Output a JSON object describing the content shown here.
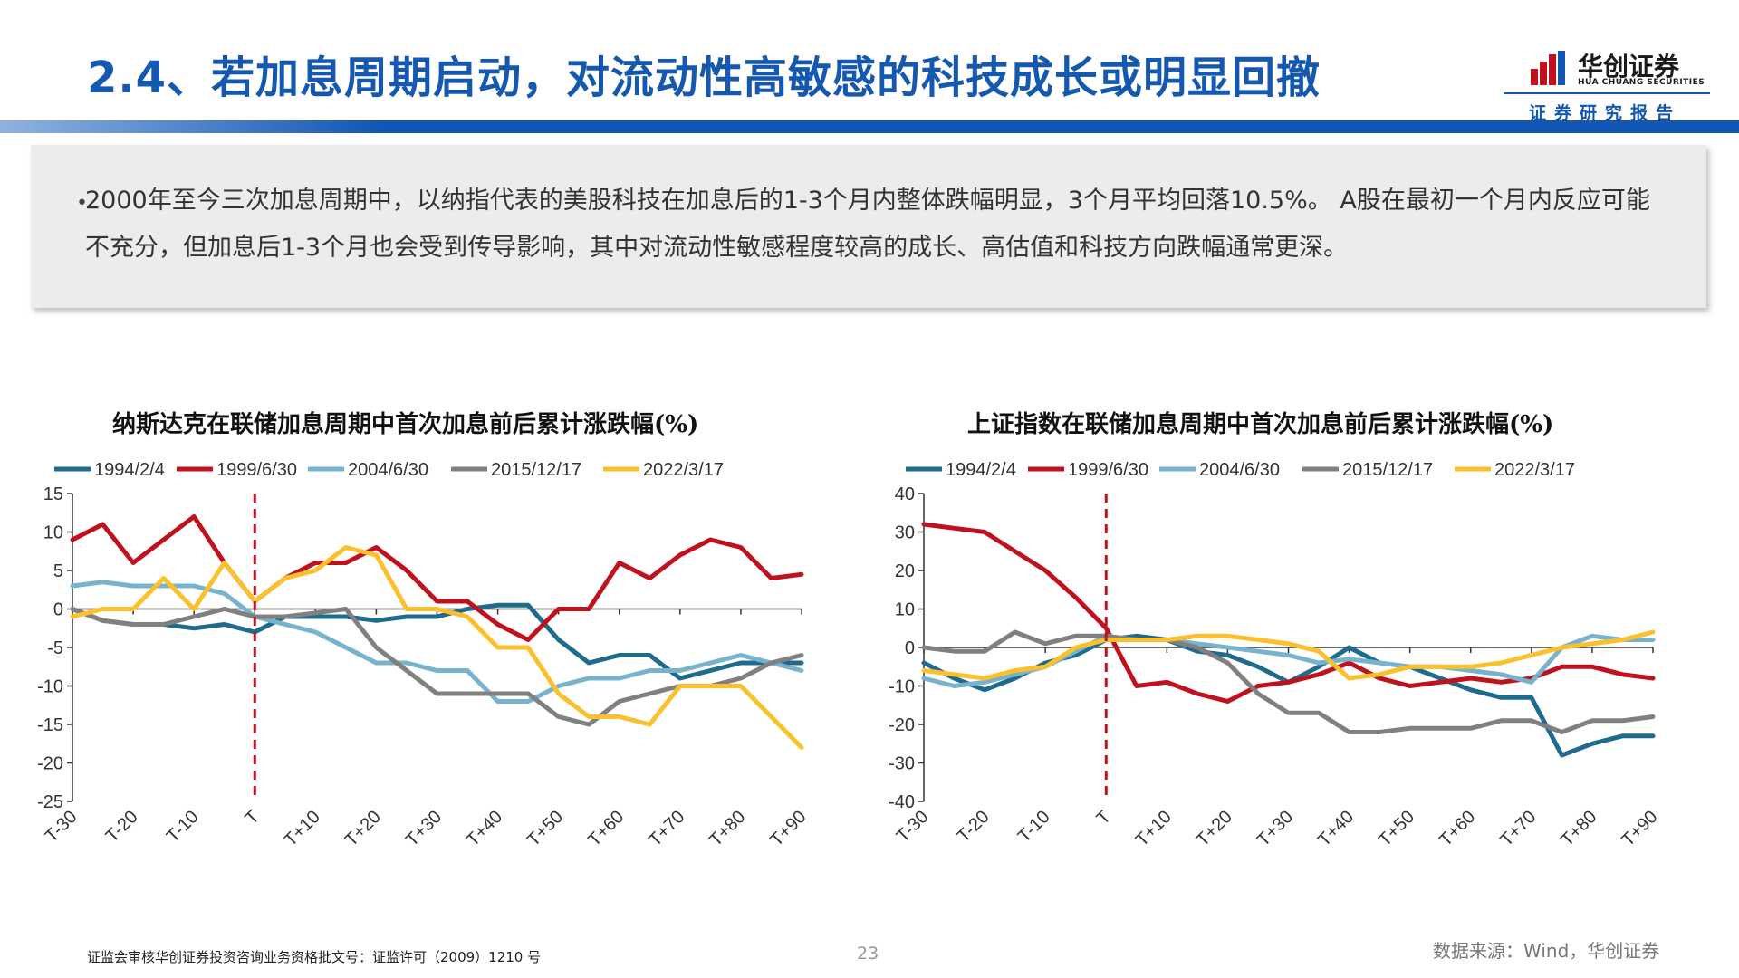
{
  "header": {
    "title": "2.4、若加息周期启动，对流动性高敏感的科技成长或明显回撤",
    "logo_cn": "华创证券",
    "logo_en": "HUA CHUANG SECURITIES",
    "report_tag": "证券研究报告"
  },
  "summary": {
    "bullet": "•",
    "text": "2000年至今三次加息周期中，以纳指代表的美股科技在加息后的1-3个月内整体跌幅明显，3个月平均回落10.5%。 A股在最初一个月内反应可能不充分，但加息后1-3个月也会受到传导影响，其中对流动性敏感程度较高的成长、高估值和科技方向跌幅通常更深。"
  },
  "colors": {
    "s1994": "#1f6b8e",
    "s1999": "#c0121e",
    "s2004": "#77b3cc",
    "s2015": "#808080",
    "s2022": "#fbc12d",
    "accent": "#1257b3"
  },
  "chart_data": [
    {
      "type": "line",
      "title": "纳斯达克在联储加息周期中首次加息前后累计涨跌幅(%)",
      "x_ticks": [
        "T-30",
        "T-20",
        "T-10",
        "T",
        "T+10",
        "T+20",
        "T+30",
        "T+40",
        "T+50",
        "T+60",
        "T+70",
        "T+80",
        "T+90"
      ],
      "ylim": [
        -25,
        15
      ],
      "y_ticks": [
        15,
        10,
        5,
        0,
        -5,
        -10,
        -15,
        -20,
        -25
      ],
      "vline_at": 0,
      "legend_position": "top",
      "series": [
        {
          "name": "1994/2/4",
          "color_key": "s1994",
          "x": [
            -30,
            -25,
            -20,
            -15,
            -10,
            -5,
            0,
            5,
            10,
            15,
            20,
            25,
            30,
            35,
            40,
            45,
            50,
            55,
            60,
            65,
            70,
            75,
            80,
            85,
            90
          ],
          "y": [
            0,
            -1.5,
            -2,
            -2,
            -2.5,
            -2,
            -3,
            -1,
            -1,
            -1,
            -1.5,
            -1,
            -1,
            0,
            0.5,
            0.5,
            -4,
            -7,
            -6,
            -6,
            -9,
            -8,
            -7,
            -7,
            -7
          ]
        },
        {
          "name": "1999/6/30",
          "color_key": "s1999",
          "x": [
            -30,
            -25,
            -20,
            -15,
            -10,
            -5,
            0,
            5,
            10,
            15,
            20,
            25,
            30,
            35,
            40,
            45,
            50,
            55,
            60,
            65,
            70,
            75,
            80,
            85,
            90
          ],
          "y": [
            9,
            11,
            6,
            9,
            12,
            6,
            1,
            4,
            6,
            6,
            8,
            5,
            1,
            1,
            -2,
            -4,
            0,
            0,
            6,
            4,
            7,
            9,
            8,
            4,
            4.5
          ]
        },
        {
          "name": "2004/6/30",
          "color_key": "s2004",
          "x": [
            -30,
            -25,
            -20,
            -15,
            -10,
            -5,
            0,
            5,
            10,
            15,
            20,
            25,
            30,
            35,
            40,
            45,
            50,
            55,
            60,
            65,
            70,
            75,
            80,
            85,
            90
          ],
          "y": [
            3,
            3.5,
            3,
            3,
            3,
            2,
            -1,
            -2,
            -3,
            -5,
            -7,
            -7,
            -8,
            -8,
            -12,
            -12,
            -10,
            -9,
            -9,
            -8,
            -8,
            -7,
            -6,
            -7,
            -8
          ]
        },
        {
          "name": "2015/12/17",
          "color_key": "s2015",
          "x": [
            -30,
            -25,
            -20,
            -15,
            -10,
            -5,
            0,
            5,
            10,
            15,
            20,
            25,
            30,
            35,
            40,
            45,
            50,
            55,
            60,
            65,
            70,
            75,
            80,
            85,
            90
          ],
          "y": [
            0,
            -1.5,
            -2,
            -2,
            -1,
            0,
            -1,
            -1,
            -0.5,
            0,
            -5,
            -8,
            -11,
            -11,
            -11,
            -11,
            -14,
            -15,
            -12,
            -11,
            -10,
            -10,
            -9,
            -7,
            -6
          ]
        },
        {
          "name": "2022/3/17",
          "color_key": "s2022",
          "x": [
            -30,
            -25,
            -20,
            -15,
            -10,
            -5,
            0,
            5,
            10,
            15,
            20,
            25,
            30,
            35,
            40,
            45,
            50,
            55,
            60,
            65,
            70,
            75,
            80,
            85,
            90
          ],
          "y": [
            -1,
            0,
            0,
            4,
            0,
            6,
            1,
            4,
            5,
            8,
            7,
            0,
            0,
            -1,
            -5,
            -5,
            -11,
            -14,
            -14,
            -15,
            -10,
            -10,
            -10,
            -14,
            -18
          ]
        }
      ]
    },
    {
      "type": "line",
      "title": "上证指数在联储加息周期中首次加息前后累计涨跌幅(%)",
      "x_ticks": [
        "T-30",
        "T-20",
        "T-10",
        "T",
        "T+10",
        "T+20",
        "T+30",
        "T+40",
        "T+50",
        "T+60",
        "T+70",
        "T+80",
        "T+90"
      ],
      "ylim": [
        -40,
        40
      ],
      "y_ticks": [
        40,
        30,
        20,
        10,
        0,
        -10,
        -20,
        -30,
        -40
      ],
      "vline_at": 0,
      "legend_position": "top",
      "series": [
        {
          "name": "1994/2/4",
          "color_key": "s1994",
          "x": [
            -30,
            -25,
            -20,
            -15,
            -10,
            -5,
            0,
            5,
            10,
            15,
            20,
            25,
            30,
            35,
            40,
            45,
            50,
            55,
            60,
            65,
            70,
            75,
            80,
            85,
            90
          ],
          "y": [
            -4,
            -8,
            -11,
            -8,
            -4,
            -2,
            2,
            3,
            2,
            -1,
            -2,
            -5,
            -9,
            -5,
            0,
            -4,
            -5,
            -8,
            -11,
            -13,
            -13,
            -28,
            -25,
            -23,
            -23
          ]
        },
        {
          "name": "1999/6/30",
          "color_key": "s1999",
          "x": [
            -30,
            -25,
            -20,
            -15,
            -10,
            -5,
            0,
            5,
            10,
            15,
            20,
            25,
            30,
            35,
            40,
            45,
            50,
            55,
            60,
            65,
            70,
            75,
            80,
            85,
            90
          ],
          "y": [
            32,
            31,
            30,
            25,
            20,
            13,
            5,
            -10,
            -9,
            -12,
            -14,
            -10,
            -9,
            -7,
            -4,
            -8,
            -10,
            -9,
            -8,
            -9,
            -8,
            -5,
            -5,
            -7,
            -8
          ]
        },
        {
          "name": "2004/6/30",
          "color_key": "s2004",
          "x": [
            -30,
            -25,
            -20,
            -15,
            -10,
            -5,
            0,
            5,
            10,
            15,
            20,
            25,
            30,
            35,
            40,
            45,
            50,
            55,
            60,
            65,
            70,
            75,
            80,
            85,
            90
          ],
          "y": [
            -8,
            -10,
            -9,
            -7,
            -5,
            -1,
            3,
            2,
            2,
            1,
            0,
            -1,
            -2,
            -4,
            -3,
            -4,
            -5,
            -5,
            -6,
            -7,
            -9,
            0,
            3,
            2,
            2
          ]
        },
        {
          "name": "2015/12/17",
          "color_key": "s2015",
          "x": [
            -30,
            -25,
            -20,
            -15,
            -10,
            -5,
            0,
            5,
            10,
            15,
            20,
            25,
            30,
            35,
            40,
            45,
            50,
            55,
            60,
            65,
            70,
            75,
            80,
            85,
            90
          ],
          "y": [
            0,
            -1,
            -1,
            4,
            1,
            3,
            3,
            2,
            2,
            0,
            -4,
            -12,
            -17,
            -17,
            -22,
            -22,
            -21,
            -21,
            -21,
            -19,
            -19,
            -22,
            -19,
            -19,
            -18
          ]
        },
        {
          "name": "2022/3/17",
          "color_key": "s2022",
          "x": [
            -30,
            -25,
            -20,
            -15,
            -10,
            -5,
            0,
            5,
            10,
            15,
            20,
            25,
            30,
            35,
            40,
            45,
            50,
            55,
            60,
            65,
            70,
            75,
            80,
            85,
            90
          ],
          "y": [
            -6,
            -7,
            -8,
            -6,
            -5,
            0,
            2,
            2,
            2,
            3,
            3,
            2,
            1,
            -1,
            -8,
            -7,
            -5,
            -5,
            -5,
            -4,
            -2,
            0,
            1,
            2,
            4
          ]
        }
      ]
    }
  ],
  "footer": {
    "license": "证监会审核华创证券投资咨询业务资格批文号：证监许可（2009）1210 号",
    "page": "23",
    "source": "数据来源：Wind，华创证券"
  }
}
